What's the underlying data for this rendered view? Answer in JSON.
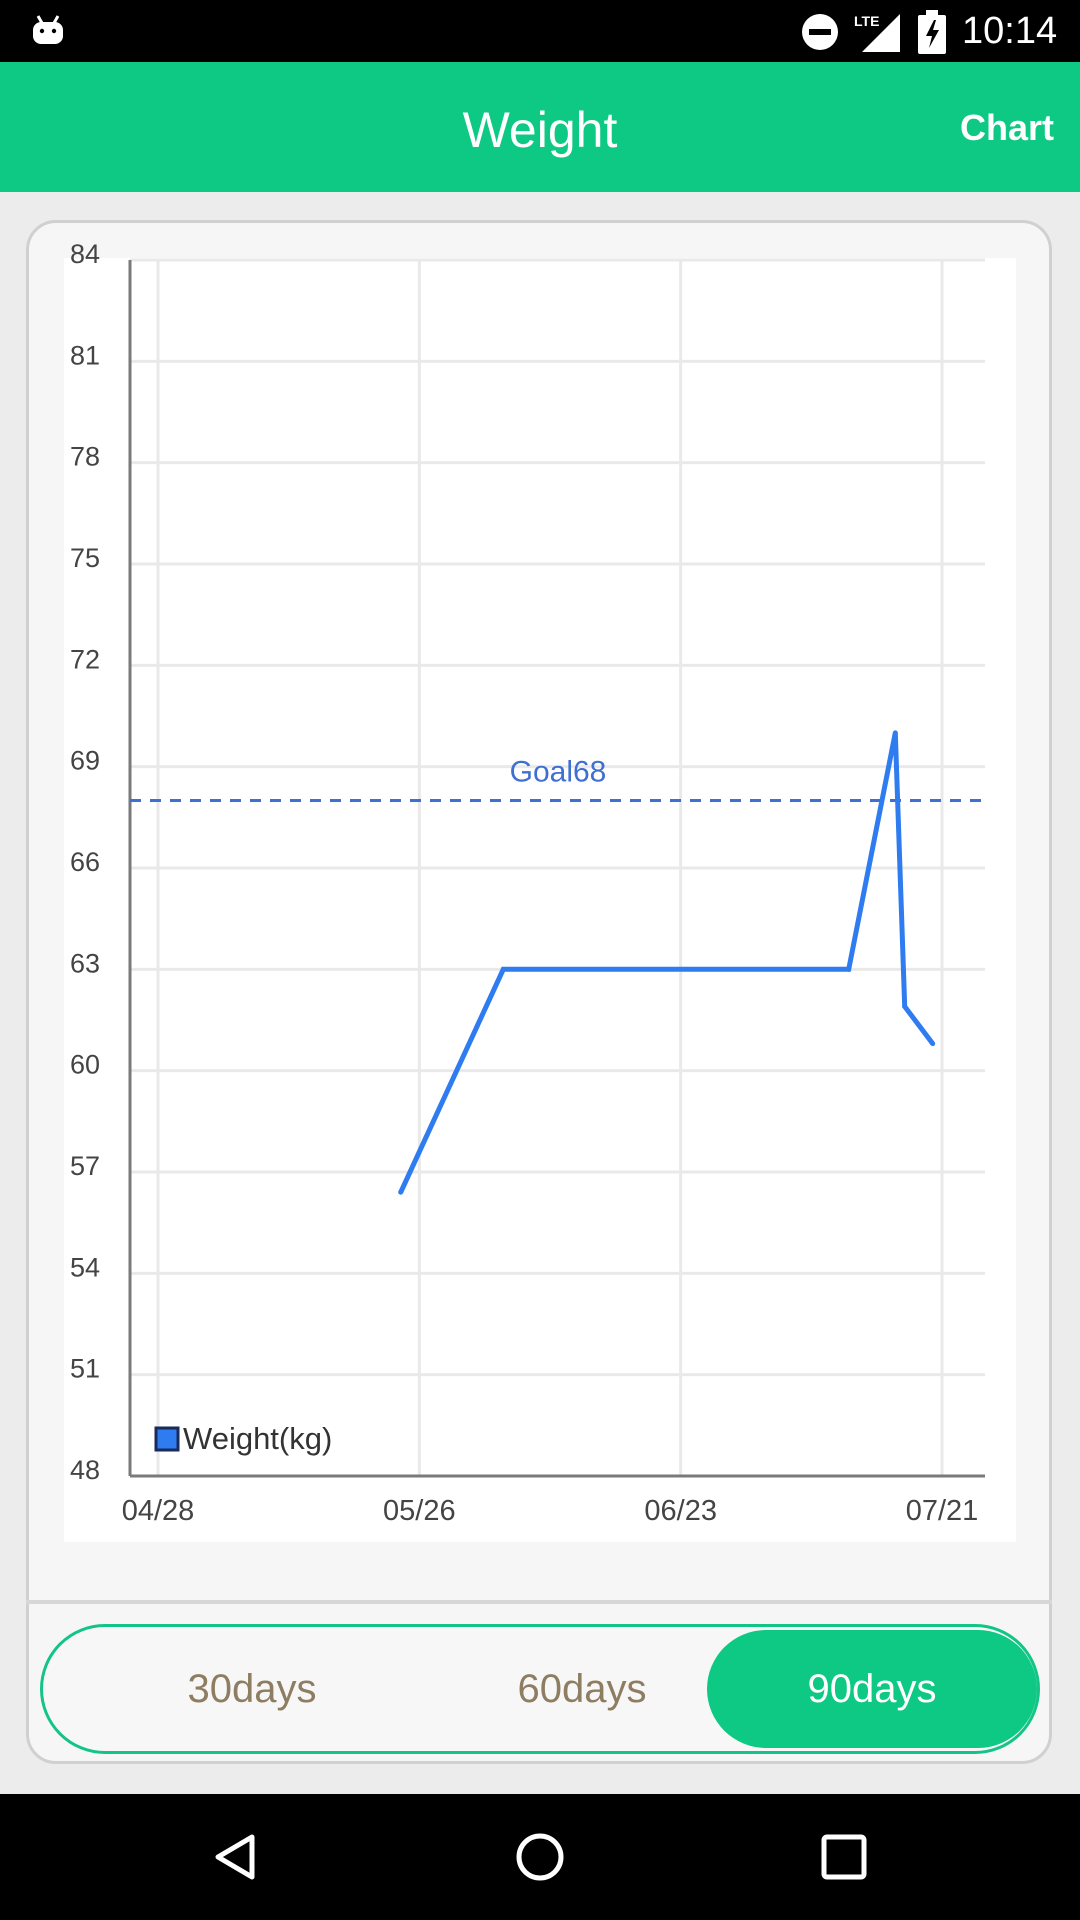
{
  "status_bar": {
    "time": "10:14",
    "network": "LTE",
    "icons": [
      "android-icon",
      "do-not-disturb-icon",
      "lte-signal-icon",
      "battery-charging-icon"
    ]
  },
  "app_bar": {
    "title": "Weight",
    "action_label": "Chart",
    "color": "#0ec984"
  },
  "range_selector": {
    "options": [
      "30days",
      "60days",
      "90days"
    ],
    "selected": "90days"
  },
  "nav_bar": {
    "icons": [
      "back-icon",
      "home-icon",
      "recent-apps-icon"
    ]
  },
  "chart_data": {
    "type": "line",
    "title": "",
    "xlabel": "",
    "ylabel": "",
    "ylim": [
      48,
      84
    ],
    "yticks": [
      48,
      51,
      54,
      57,
      60,
      63,
      66,
      69,
      72,
      75,
      78,
      81,
      84
    ],
    "xlim": [
      "2017-04-28",
      "2017-07-22"
    ],
    "xticks": [
      {
        "date": "2017-04-28",
        "label": "04/28"
      },
      {
        "date": "2017-05-26",
        "label": "05/26"
      },
      {
        "date": "2017-06-23",
        "label": "06/23"
      },
      {
        "date": "2017-07-21",
        "label": "07/21"
      }
    ],
    "grid": true,
    "legend": {
      "position": "bottom-left",
      "label": "Weight(kg)"
    },
    "series": [
      {
        "name": "Weight(kg)",
        "color": "#2f7cf0",
        "points": [
          {
            "date": "2017-05-24",
            "value": 56.4
          },
          {
            "date": "2017-06-04",
            "value": 63.0
          },
          {
            "date": "2017-07-11",
            "value": 63.0
          },
          {
            "date": "2017-07-16",
            "value": 70.0
          },
          {
            "date": "2017-07-17",
            "value": 61.9
          },
          {
            "date": "2017-07-20",
            "value": 60.8
          }
        ]
      }
    ],
    "goal": {
      "value": 68,
      "label": "Goal68",
      "color": "#3f6fd0",
      "style": "dashed"
    }
  }
}
